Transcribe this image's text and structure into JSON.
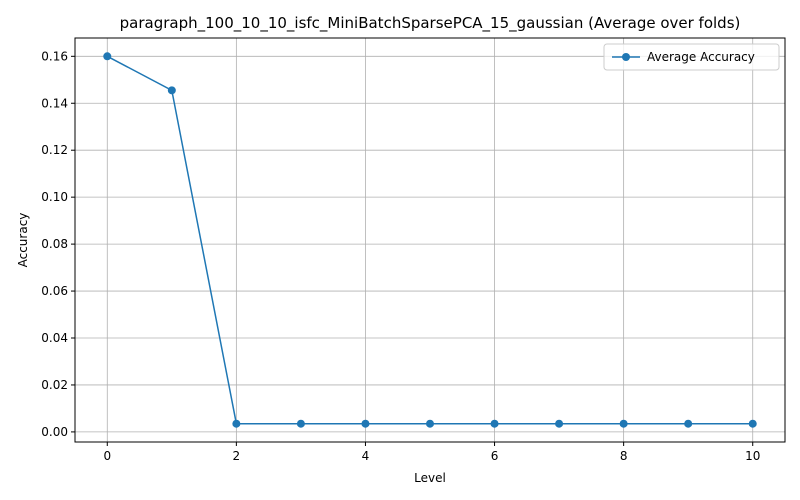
{
  "chart_data": {
    "type": "line",
    "title": "paragraph_100_10_10_isfc_MiniBatchSparsePCA_15_gaussian (Average over folds)",
    "xlabel": "Level",
    "ylabel": "Accuracy",
    "x": [
      0,
      1,
      2,
      3,
      4,
      5,
      6,
      7,
      8,
      9,
      10
    ],
    "series": [
      {
        "name": "Average Accuracy",
        "color": "#1f77b4",
        "marker": "circle",
        "values": [
          0.16,
          0.1455,
          0.0035,
          0.0035,
          0.0035,
          0.0035,
          0.0035,
          0.0035,
          0.0035,
          0.0035,
          0.0035
        ]
      }
    ],
    "xlim": [
      -0.5,
      10.5
    ],
    "ylim": [
      -0.0043,
      0.1678
    ],
    "xticks": [
      "0",
      "2",
      "4",
      "6",
      "8",
      "10"
    ],
    "yticks": [
      "0.00",
      "0.02",
      "0.04",
      "0.06",
      "0.08",
      "0.10",
      "0.12",
      "0.14",
      "0.16"
    ],
    "grid": true,
    "legend_position": "top-right"
  }
}
